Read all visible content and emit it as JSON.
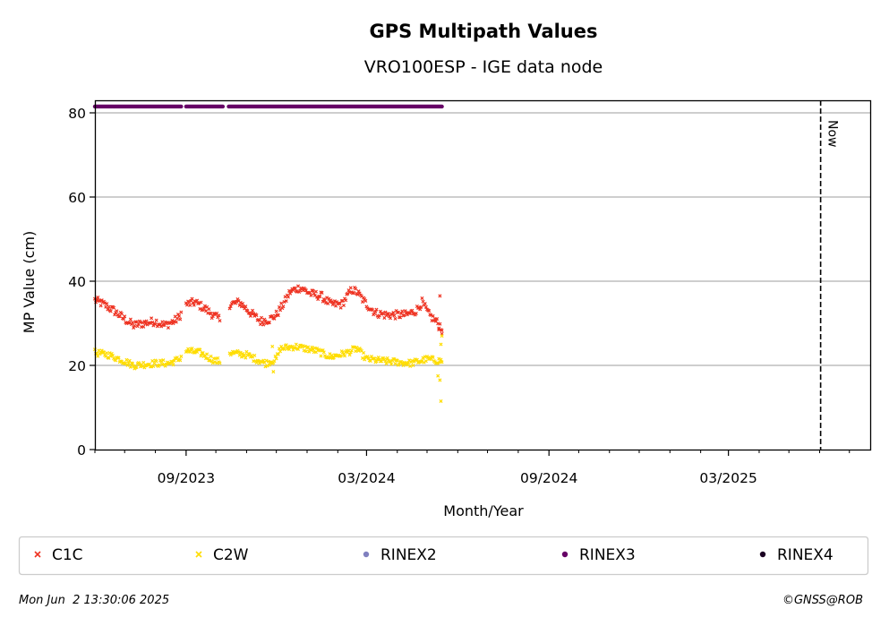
{
  "chart_data": {
    "type": "scatter",
    "title": "GPS Multipath Values",
    "subtitle": "VRO100ESP - IGE data node",
    "xlabel": "Month/Year",
    "ylabel": "MP Value (cm)",
    "x_range": [
      "2023-06-01",
      "2025-07-22"
    ],
    "y_range": [
      0,
      80
    ],
    "y_ticks": [
      0,
      20,
      40,
      60,
      80
    ],
    "x_ticks": [
      {
        "date": "2023-09-01",
        "label": "09/2023"
      },
      {
        "date": "2024-03-01",
        "label": "03/2024"
      },
      {
        "date": "2024-09-01",
        "label": "09/2024"
      },
      {
        "date": "2025-03-01",
        "label": "03/2025"
      }
    ],
    "x_minor_ticks": [
      "2023-06-01",
      "2023-07-01",
      "2023-08-01",
      "2023-10-01",
      "2023-11-01",
      "2023-12-01",
      "2024-01-01",
      "2024-02-01",
      "2024-04-01",
      "2024-05-01",
      "2024-06-01",
      "2024-07-01",
      "2024-08-01",
      "2024-10-01",
      "2024-11-01",
      "2024-12-01",
      "2025-01-01",
      "2025-02-01",
      "2025-04-01",
      "2025-05-01",
      "2025-06-01",
      "2025-07-01"
    ],
    "grid": "horizontal",
    "now_marker": {
      "date": "2025-06-02",
      "label": "Now"
    },
    "series": [
      {
        "name": "C1C",
        "color": "#ee3322",
        "marker": "x",
        "profile": [
          [
            "2023-06-01",
            35.5
          ],
          [
            "2023-06-10",
            34.5
          ],
          [
            "2023-06-20",
            33.0
          ],
          [
            "2023-07-01",
            31.0
          ],
          [
            "2023-07-10",
            29.5
          ],
          [
            "2023-07-20",
            30.0
          ],
          [
            "2023-08-01",
            30.5
          ],
          [
            "2023-08-10",
            29.5
          ],
          [
            "2023-08-20",
            30.5
          ],
          [
            "2023-08-25",
            31.5
          ],
          [
            "2023-09-01",
            34.5
          ],
          [
            "2023-09-10",
            35.0
          ],
          [
            "2023-09-20",
            33.5
          ],
          [
            "2023-10-01",
            31.5
          ],
          [
            "2023-10-05",
            31.0
          ],
          [
            "2023-10-15",
            34.5
          ],
          [
            "2023-10-25",
            35.0
          ],
          [
            "2023-11-05",
            32.5
          ],
          [
            "2023-11-15",
            30.5
          ],
          [
            "2023-11-25",
            31.0
          ],
          [
            "2023-12-01",
            32.0
          ],
          [
            "2023-12-08",
            34.5
          ],
          [
            "2023-12-15",
            37.5
          ],
          [
            "2023-12-25",
            38.5
          ],
          [
            "2024-01-05",
            37.0
          ],
          [
            "2024-01-15",
            36.5
          ],
          [
            "2024-01-25",
            34.5
          ],
          [
            "2024-02-05",
            34.5
          ],
          [
            "2024-02-15",
            38.0
          ],
          [
            "2024-02-20",
            37.5
          ],
          [
            "2024-03-01",
            34.5
          ],
          [
            "2024-03-10",
            32.5
          ],
          [
            "2024-03-20",
            32.0
          ],
          [
            "2024-04-01",
            32.0
          ],
          [
            "2024-04-10",
            32.0
          ],
          [
            "2024-04-20",
            33.0
          ],
          [
            "2024-04-26",
            35.0
          ],
          [
            "2024-05-03",
            32.0
          ],
          [
            "2024-05-10",
            30.5
          ],
          [
            "2024-05-16",
            29.0
          ]
        ],
        "gaps": [
          [
            "2023-08-28",
            "2023-08-31"
          ],
          [
            "2023-10-06",
            "2023-10-14"
          ]
        ],
        "noise": 1.0,
        "outliers": [
          [
            "2024-05-14",
            36.5
          ],
          [
            "2024-05-13",
            28.5
          ],
          [
            "2024-05-16",
            27.5
          ]
        ]
      },
      {
        "name": "C2W",
        "color": "#ffdd00",
        "marker": "x",
        "profile": [
          [
            "2023-06-01",
            23.0
          ],
          [
            "2023-06-15",
            22.5
          ],
          [
            "2023-07-01",
            21.0
          ],
          [
            "2023-07-10",
            20.0
          ],
          [
            "2023-08-01",
            20.5
          ],
          [
            "2023-08-15",
            20.5
          ],
          [
            "2023-08-25",
            21.5
          ],
          [
            "2023-09-01",
            23.5
          ],
          [
            "2023-09-15",
            23.0
          ],
          [
            "2023-10-01",
            21.0
          ],
          [
            "2023-10-05",
            21.0
          ],
          [
            "2023-10-15",
            23.0
          ],
          [
            "2023-11-01",
            22.5
          ],
          [
            "2023-11-20",
            20.5
          ],
          [
            "2023-12-01",
            21.5
          ],
          [
            "2023-12-05",
            24.0
          ],
          [
            "2023-12-20",
            24.5
          ],
          [
            "2024-01-10",
            23.5
          ],
          [
            "2024-01-25",
            22.0
          ],
          [
            "2024-02-10",
            23.0
          ],
          [
            "2024-02-20",
            24.0
          ],
          [
            "2024-03-01",
            21.5
          ],
          [
            "2024-03-20",
            21.0
          ],
          [
            "2024-04-15",
            20.5
          ],
          [
            "2024-05-01",
            21.5
          ],
          [
            "2024-05-16",
            21.0
          ]
        ],
        "gaps": [
          [
            "2023-08-28",
            "2023-08-31"
          ],
          [
            "2023-10-06",
            "2023-10-14"
          ]
        ],
        "noise": 0.8,
        "outliers": [
          [
            "2023-11-28",
            18.5
          ],
          [
            "2023-11-27",
            24.5
          ],
          [
            "2024-05-12",
            17.5
          ],
          [
            "2024-05-14",
            16.5
          ],
          [
            "2024-05-15",
            11.5
          ],
          [
            "2024-05-16",
            27.0
          ],
          [
            "2024-05-15",
            25.0
          ]
        ]
      },
      {
        "name": "RINEX2",
        "color": "#8080bf",
        "marker": "o",
        "points": []
      },
      {
        "name": "RINEX3",
        "color": "#660066",
        "marker": "o",
        "y_value": 81.5,
        "spans": [
          [
            "2023-06-01",
            "2023-08-27"
          ],
          [
            "2023-09-01",
            "2023-10-08"
          ],
          [
            "2023-10-14",
            "2024-05-16"
          ]
        ]
      },
      {
        "name": "RINEX4",
        "color": "#1a0022",
        "marker": "o",
        "points": []
      }
    ]
  },
  "legend": {
    "items": [
      {
        "label": "C1C",
        "marker": "x",
        "color": "#ee3322"
      },
      {
        "label": "C2W",
        "marker": "x",
        "color": "#ffdd00"
      },
      {
        "label": "RINEX2",
        "marker": "o",
        "color": "#8080bf"
      },
      {
        "label": "RINEX3",
        "marker": "o",
        "color": "#660066"
      },
      {
        "label": "RINEX4",
        "marker": "o",
        "color": "#1a0022"
      }
    ]
  },
  "footer": {
    "timestamp": "Mon Jun  2 13:30:06 2025",
    "credit": "©GNSS@ROB"
  }
}
